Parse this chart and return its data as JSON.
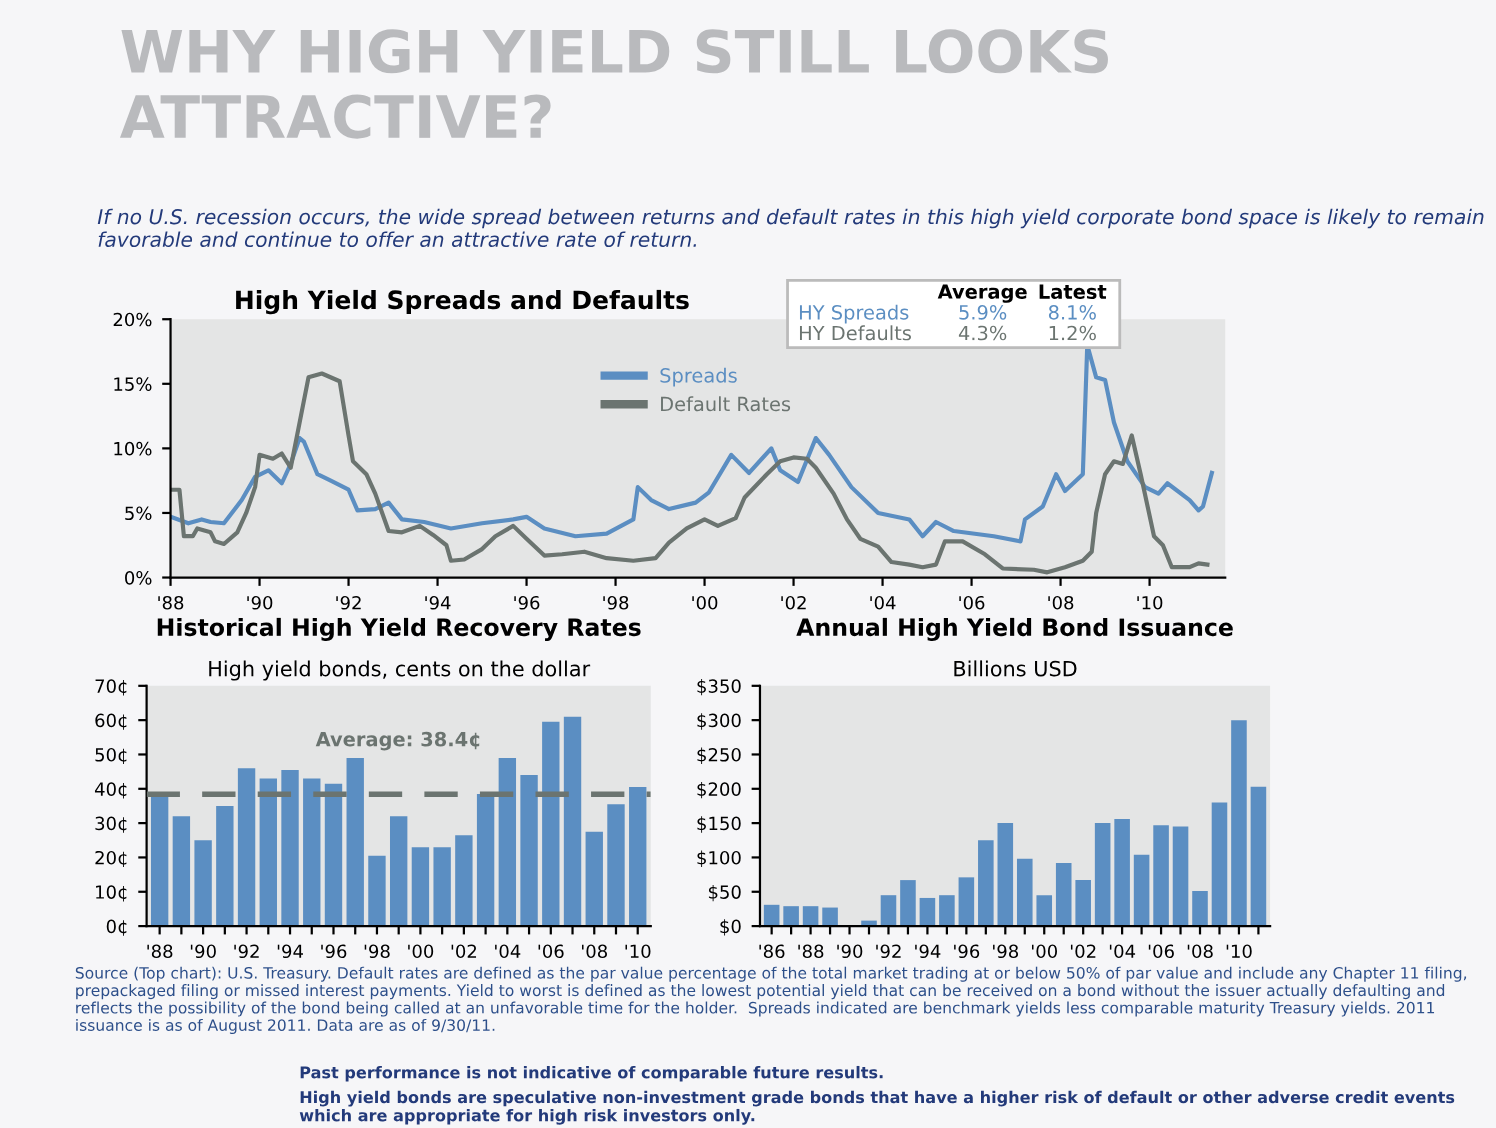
{
  "chart_data": [
    {
      "type": "other",
      "title": "WHY HIGH YIELD STILL LOOKS ATTRACTIVE?",
      "subtitle": "If no U.S. recession occurs, the wide spread between returns and default rates in this high yield corporate bond space is likely to remain favorable and continue to offer an attractive rate of return.",
      "annotations": [
        "Source (Top chart): U.S. Treasury. Default rates are defined as the par value percentage of the total market trading at or below 50% of par value and include any Chapter 11 filing, prepackaged filing or missed interest payments. Yield to worst is defined as the lowest potential yield that can be received on a bond without the issuer actually defaulting and reflects the possibility of the bond being called at an unfavorable time for the holder.  Spreads indicated are benchmark yields less comparable maturity Treasury yields. 2011 issuance is as of August 2011. Data are as of 9/30/11.",
        "Past performance is not indicative of comparable future results.",
        "High yield bonds are speculative non-investment grade bonds that have a higher risk of default or other adverse credit events which are appropriate for high risk investors only."
      ]
    },
    {
      "type": "line",
      "title": "High Yield Spreads and Defaults",
      "legend": "top",
      "grid": false,
      "annotations": [
        "Average",
        "Latest",
        "HY Spreads",
        "5.9%",
        "8.1%",
        "HY Defaults",
        "4.3%",
        "1.2%"
      ],
      "xlim": [
        1988,
        2011.7
      ],
      "ylim": [
        0,
        20
      ],
      "xticks": [
        {
          "value": 1988,
          "label": "'88"
        },
        {
          "value": 1990,
          "label": "'90"
        },
        {
          "value": 1992,
          "label": "'92"
        },
        {
          "value": 1994,
          "label": "'94"
        },
        {
          "value": 1996,
          "label": "'96"
        },
        {
          "value": 1998,
          "label": "'98"
        },
        {
          "value": 2000,
          "label": "'00"
        },
        {
          "value": 2002,
          "label": "'02"
        },
        {
          "value": 2004,
          "label": "'04"
        },
        {
          "value": 2006,
          "label": "'06"
        },
        {
          "value": 2008,
          "label": "'08"
        },
        {
          "value": 2010,
          "label": "'10"
        }
      ],
      "yticks": [
        {
          "value": 0,
          "label": "0%"
        },
        {
          "value": 5,
          "label": "5%"
        },
        {
          "value": 10,
          "label": "10%"
        },
        {
          "value": 15,
          "label": "15%"
        },
        {
          "value": 20,
          "label": "20%"
        }
      ],
      "series": [
        {
          "name": "Spreads",
          "color": "#5b8ec2",
          "x": [
            1988.0,
            1988.4,
            1988.7,
            1988.9,
            1989.2,
            1989.6,
            1989.9,
            1990.2,
            1990.5,
            1990.7,
            1990.9,
            1991.0,
            1991.3,
            1991.6,
            1992.0,
            1992.2,
            1992.6,
            1992.9,
            1993.2,
            1993.7,
            1994.3,
            1995.0,
            1995.7,
            1996.0,
            1996.4,
            1997.1,
            1997.8,
            1998.4,
            1998.5,
            1998.8,
            1999.2,
            1999.8,
            2000.1,
            2000.6,
            2001.0,
            2001.5,
            2001.7,
            2002.1,
            2002.5,
            2002.8,
            2003.3,
            2003.9,
            2004.6,
            2004.9,
            2005.2,
            2005.6,
            2006.5,
            2007.1,
            2007.2,
            2007.6,
            2007.9,
            2008.1,
            2008.5,
            2008.6,
            2008.8,
            2009.0,
            2009.2,
            2009.5,
            2009.9,
            2010.2,
            2010.4,
            2010.9,
            2011.1,
            2011.2,
            2011.4
          ],
          "values": [
            4.7,
            4.2,
            4.5,
            4.3,
            4.2,
            6.0,
            7.8,
            8.3,
            7.3,
            8.8,
            10.8,
            10.5,
            8.0,
            7.5,
            6.8,
            5.2,
            5.3,
            5.8,
            4.5,
            4.3,
            3.8,
            4.2,
            4.5,
            4.7,
            3.8,
            3.2,
            3.4,
            4.5,
            7.0,
            6.0,
            5.3,
            5.8,
            6.6,
            9.5,
            8.1,
            10.0,
            8.3,
            7.4,
            10.8,
            9.5,
            7.0,
            5.0,
            4.5,
            3.2,
            4.3,
            3.6,
            3.2,
            2.8,
            4.5,
            5.5,
            8.0,
            6.7,
            8.0,
            18.0,
            15.5,
            15.3,
            12.0,
            9.0,
            7.0,
            6.5,
            7.3,
            6.0,
            5.2,
            5.5,
            8.1
          ]
        },
        {
          "name": "Default Rates",
          "color": "#6b7470",
          "x": [
            1988.0,
            1988.2,
            1988.3,
            1988.5,
            1988.6,
            1988.9,
            1989.0,
            1989.2,
            1989.5,
            1989.7,
            1989.9,
            1990.0,
            1990.3,
            1990.5,
            1990.7,
            1990.9,
            1991.1,
            1991.4,
            1991.8,
            1992.0,
            1992.1,
            1992.4,
            1992.6,
            1992.9,
            1993.2,
            1993.6,
            1993.9,
            1994.2,
            1994.3,
            1994.6,
            1995.0,
            1995.3,
            1995.7,
            1996.0,
            1996.4,
            1996.8,
            1997.3,
            1997.8,
            1998.4,
            1998.9,
            1999.2,
            1999.6,
            2000.0,
            2000.3,
            2000.7,
            2000.9,
            2001.4,
            2001.7,
            2002.0,
            2002.3,
            2002.5,
            2002.9,
            2003.2,
            2003.5,
            2003.9,
            2004.2,
            2004.6,
            2004.9,
            2005.2,
            2005.4,
            2005.8,
            2006.3,
            2006.7,
            2007.4,
            2007.7,
            2008.1,
            2008.5,
            2008.7,
            2008.8,
            2009.0,
            2009.2,
            2009.4,
            2009.6,
            2009.8,
            2010.1,
            2010.3,
            2010.5,
            2010.9,
            2011.1,
            2011.3
          ],
          "values": [
            6.8,
            6.8,
            3.2,
            3.2,
            3.8,
            3.5,
            2.8,
            2.6,
            3.5,
            5.0,
            7.0,
            9.5,
            9.2,
            9.6,
            8.5,
            12.0,
            15.5,
            15.8,
            15.2,
            11.0,
            9.0,
            8.0,
            6.5,
            3.6,
            3.5,
            4.0,
            3.3,
            2.5,
            1.3,
            1.4,
            2.2,
            3.2,
            4.0,
            3.0,
            1.7,
            1.8,
            2.0,
            1.5,
            1.3,
            1.5,
            2.7,
            3.8,
            4.5,
            4.0,
            4.6,
            6.2,
            8.0,
            9.0,
            9.3,
            9.2,
            8.5,
            6.5,
            4.5,
            3.0,
            2.4,
            1.2,
            1.0,
            0.8,
            1.0,
            2.8,
            2.8,
            1.8,
            0.7,
            0.6,
            0.4,
            0.8,
            1.3,
            2.0,
            5.0,
            8.0,
            9.0,
            8.8,
            11.0,
            8.0,
            3.2,
            2.5,
            0.8,
            0.8,
            1.1,
            1.0
          ]
        }
      ]
    },
    {
      "type": "bar",
      "title": "Historical High Yield Recovery Rates",
      "subtitle": "High yield bonds, cents on the dollar",
      "color": "#5b8ec2",
      "grid": false,
      "categories": [
        "'88",
        null,
        "'90",
        null,
        "'92",
        null,
        "'94",
        null,
        "'96",
        null,
        "'98",
        null,
        "'00",
        null,
        "'02",
        null,
        "'04",
        null,
        "'06",
        null,
        "'08",
        null,
        "'10"
      ],
      "values": [
        39,
        32,
        25,
        35,
        46,
        43,
        45.5,
        43,
        41.5,
        49,
        20.5,
        32,
        23,
        23,
        26.5,
        38.5,
        49,
        44,
        59.5,
        61,
        27.5,
        35.5,
        40.5
      ],
      "ylim": [
        0,
        70
      ],
      "yticks": [
        {
          "value": 0,
          "label": "0¢"
        },
        {
          "value": 10,
          "label": "10¢"
        },
        {
          "value": 20,
          "label": "20¢"
        },
        {
          "value": 30,
          "label": "30¢"
        },
        {
          "value": 40,
          "label": "40¢"
        },
        {
          "value": 50,
          "label": "50¢"
        },
        {
          "value": 60,
          "label": "60¢"
        },
        {
          "value": 70,
          "label": "70¢"
        }
      ],
      "ref_lines": [
        {
          "axis": "y",
          "value": 38.4,
          "label": "Average: 38.4¢",
          "color": "#6b7470",
          "line_style": "dashed"
        }
      ]
    },
    {
      "type": "bar",
      "title": "Annual High Yield Bond Issuance",
      "subtitle": "Billions USD",
      "color": "#5b8ec2",
      "grid": false,
      "categories": [
        "'86",
        null,
        "'88",
        null,
        "'90",
        null,
        "'92",
        null,
        "'94",
        null,
        "'96",
        null,
        "'98",
        null,
        "'00",
        null,
        "'02",
        null,
        "'04",
        null,
        "'06",
        null,
        "'08",
        null,
        "'10",
        null
      ],
      "values": [
        31,
        29,
        29,
        27,
        null,
        8,
        45,
        67,
        41,
        45,
        71,
        125,
        150,
        98,
        45,
        92,
        67,
        150,
        156,
        104,
        147,
        145,
        51,
        180,
        300,
        203
      ],
      "ylim": [
        0,
        350
      ],
      "yticks": [
        {
          "value": 0,
          "label": "$0"
        },
        {
          "value": 50,
          "label": "$50"
        },
        {
          "value": 100,
          "label": "$100"
        },
        {
          "value": 150,
          "label": "$150"
        },
        {
          "value": 200,
          "label": "$200"
        },
        {
          "value": 250,
          "label": "$250"
        },
        {
          "value": 300,
          "label": "$300"
        },
        {
          "value": 350,
          "label": "$350"
        }
      ]
    }
  ]
}
